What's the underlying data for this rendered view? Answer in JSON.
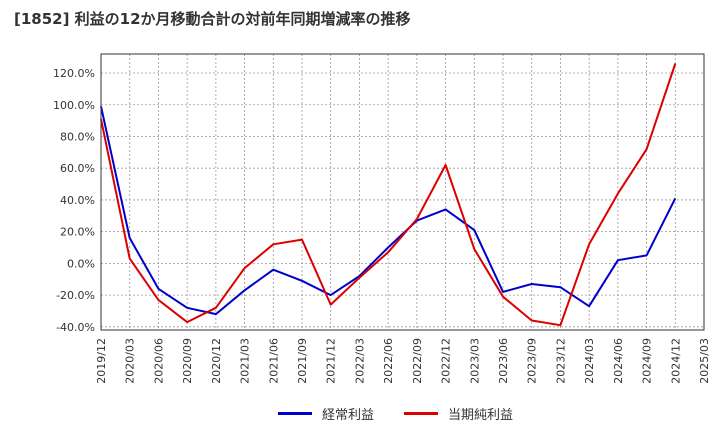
{
  "chart_data": {
    "type": "line",
    "title": "[1852]  利益の12か月移動合計の対前年同期増減率の推移",
    "xlabel": "",
    "ylabel": "",
    "ylim": [
      -42,
      132
    ],
    "y_ticks": [
      "120.0%",
      "100.0%",
      "80.0%",
      "60.0%",
      "40.0%",
      "20.0%",
      "0.0%",
      "-20.0%",
      "-40.0%"
    ],
    "y_tick_values": [
      120,
      100,
      80,
      60,
      40,
      20,
      0,
      -20,
      -40
    ],
    "categories": [
      "2019/12",
      "2020/03",
      "2020/06",
      "2020/09",
      "2020/12",
      "2021/03",
      "2021/06",
      "2021/09",
      "2021/12",
      "2022/03",
      "2022/06",
      "2022/09",
      "2022/12",
      "2023/03",
      "2023/06",
      "2023/09",
      "2023/12",
      "2024/03",
      "2024/06",
      "2024/09",
      "2024/12",
      "2025/03"
    ],
    "series": [
      {
        "name": "経常利益",
        "color": "#0000cc",
        "values": [
          99,
          16,
          -16,
          -28,
          -32,
          -17,
          -4,
          -11,
          -20,
          -8,
          10,
          27,
          34,
          21,
          -18,
          -13,
          -15,
          -27,
          2,
          5,
          41,
          null
        ]
      },
      {
        "name": "当期純利益",
        "color": "#dd0000",
        "values": [
          91,
          3,
          -23,
          -37,
          -28,
          -3,
          12,
          15,
          -26,
          -9,
          7,
          28,
          62,
          9,
          -21,
          -36,
          -39,
          12,
          44,
          72,
          126,
          null
        ]
      }
    ],
    "grid": true,
    "legend_position": "bottom-center"
  }
}
